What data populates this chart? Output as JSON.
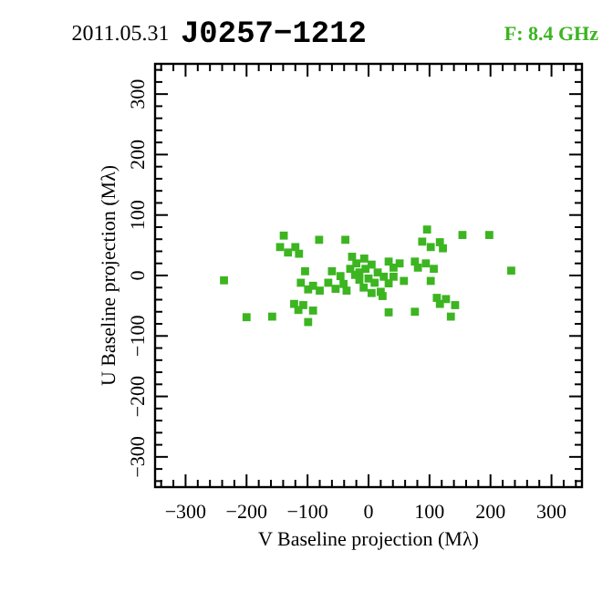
{
  "chart_data": {
    "type": "scatter",
    "title": "J0257−1212",
    "subtitle": "2011.05.31",
    "annotations": [
      "F: 8.4 GHz"
    ],
    "xlabel": "V Baseline projection (Mλ)",
    "ylabel": "U Baseline projection (Mλ)",
    "xlim": [
      -350,
      350
    ],
    "ylim": [
      -350,
      350
    ],
    "xticks": [
      -300,
      -200,
      -100,
      0,
      100,
      200,
      300,
      {
        "value": -340,
        "label": null
      },
      {
        "value": -320,
        "label": null
      },
      {
        "value": -280,
        "label": null
      },
      {
        "value": -260,
        "label": null
      },
      {
        "value": -240,
        "label": null
      },
      {
        "value": -220,
        "label": null
      },
      {
        "value": -180,
        "label": null
      },
      {
        "value": -160,
        "label": null
      },
      {
        "value": -140,
        "label": null
      },
      {
        "value": -120,
        "label": null
      },
      {
        "value": -80,
        "label": null
      },
      {
        "value": -60,
        "label": null
      },
      {
        "value": -40,
        "label": null
      },
      {
        "value": -20,
        "label": null
      },
      {
        "value": 20,
        "label": null
      },
      {
        "value": 40,
        "label": null
      },
      {
        "value": 60,
        "label": null
      },
      {
        "value": 80,
        "label": null
      },
      {
        "value": 120,
        "label": null
      },
      {
        "value": 140,
        "label": null
      },
      {
        "value": 160,
        "label": null
      },
      {
        "value": 180,
        "label": null
      },
      {
        "value": 220,
        "label": null
      },
      {
        "value": 240,
        "label": null
      },
      {
        "value": 260,
        "label": null
      },
      {
        "value": 280,
        "label": null
      },
      {
        "value": 320,
        "label": null
      },
      {
        "value": 340,
        "label": null
      }
    ],
    "yticks": [
      -300,
      -200,
      -100,
      0,
      100,
      200,
      300,
      {
        "value": -340,
        "label": null
      },
      {
        "value": -320,
        "label": null
      },
      {
        "value": -280,
        "label": null
      },
      {
        "value": -260,
        "label": null
      },
      {
        "value": -240,
        "label": null
      },
      {
        "value": -220,
        "label": null
      },
      {
        "value": -180,
        "label": null
      },
      {
        "value": -160,
        "label": null
      },
      {
        "value": -140,
        "label": null
      },
      {
        "value": -120,
        "label": null
      },
      {
        "value": -80,
        "label": null
      },
      {
        "value": -60,
        "label": null
      },
      {
        "value": -40,
        "label": null
      },
      {
        "value": -20,
        "label": null
      },
      {
        "value": 20,
        "label": null
      },
      {
        "value": 40,
        "label": null
      },
      {
        "value": 60,
        "label": null
      },
      {
        "value": 80,
        "label": null
      },
      {
        "value": 120,
        "label": null
      },
      {
        "value": 140,
        "label": null
      },
      {
        "value": 160,
        "label": null
      },
      {
        "value": 180,
        "label": null
      },
      {
        "value": 220,
        "label": null
      },
      {
        "value": 240,
        "label": null
      },
      {
        "value": 260,
        "label": null
      },
      {
        "value": 280,
        "label": null
      },
      {
        "value": 320,
        "label": null
      },
      {
        "value": 340,
        "label": null
      }
    ],
    "grid": false,
    "marker": "square",
    "series": [
      {
        "color": "#3cb521",
        "x": [
          -139,
          -81,
          -38,
          -145,
          -120,
          -132,
          -114,
          96,
          154,
          198,
          88,
          102,
          117,
          122,
          -237,
          234,
          -104,
          -111,
          -91,
          -80,
          -99,
          -66,
          -60,
          -46,
          -54,
          -36,
          -41,
          -27,
          -7,
          -20,
          -30,
          -15,
          -5,
          5,
          15,
          -15,
          0,
          10,
          25,
          20,
          5,
          23,
          -8,
          -22,
          41,
          33,
          41,
          51,
          58,
          33,
          76,
          94,
          81,
          107,
          102,
          112,
          127,
          117,
          142,
          135,
          76,
          33,
          -122,
          -107,
          -115,
          -91,
          -99,
          -200,
          -158
        ],
        "values": [
          66,
          59,
          59,
          47,
          47,
          38,
          36,
          76,
          67,
          67,
          56,
          47,
          55,
          45,
          -8,
          8,
          7,
          -12,
          -17,
          -25,
          -23,
          -12,
          7,
          -1,
          -22,
          -25,
          -14,
          31,
          28,
          20,
          11,
          5,
          11,
          18,
          5,
          -7,
          -5,
          -12,
          -2,
          -27,
          -29,
          -34,
          -20,
          1,
          -2,
          23,
          13,
          20,
          -9,
          -13,
          23,
          20,
          13,
          11,
          -9,
          -37,
          -39,
          -47,
          -49,
          -68,
          -60,
          -61,
          -47,
          -49,
          -57,
          -58,
          -77,
          -69,
          -68
        ]
      }
    ]
  }
}
